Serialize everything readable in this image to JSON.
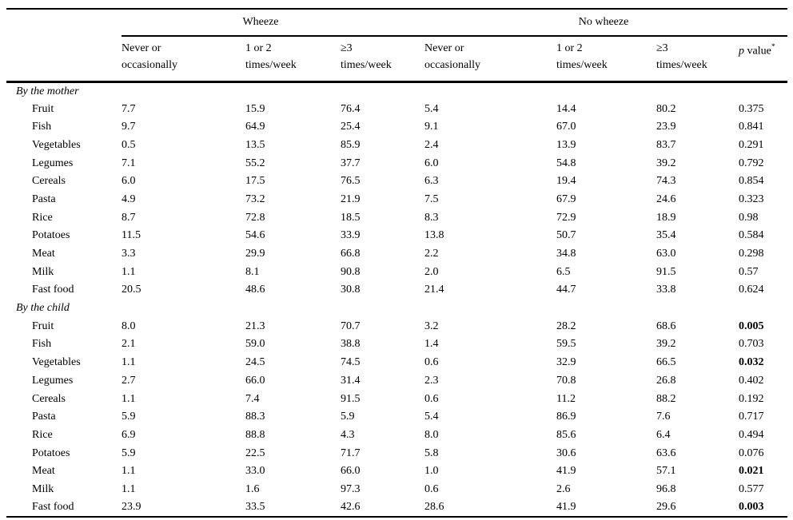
{
  "page": {
    "background": "#ffffff",
    "text_color": "#000000"
  },
  "table": {
    "spanners": {
      "wheeze": "Wheeze",
      "no_wheeze": "No wheeze"
    },
    "column_headers": [
      {
        "line1": "Never or",
        "line2": "occasionally"
      },
      {
        "line1": "1 or 2",
        "line2": "times/week"
      },
      {
        "line1": "≥3",
        "line2": "times/week"
      },
      {
        "line1": "Never or",
        "line2": "occasionally"
      },
      {
        "line1": "1 or 2",
        "line2": "times/week"
      },
      {
        "line1": "≥3",
        "line2": "times/week"
      }
    ],
    "p_value_header": {
      "italic_part": "p",
      "text_part": " value",
      "superscript": "*"
    },
    "sections": [
      {
        "label": "By the mother",
        "rows": [
          {
            "label": "Fruit",
            "values": [
              "7.7",
              "15.9",
              "76.4",
              "5.4",
              "14.4",
              "80.2"
            ],
            "p_value": "0.375",
            "p_bold": false
          },
          {
            "label": "Fish",
            "values": [
              "9.7",
              "64.9",
              "25.4",
              "9.1",
              "67.0",
              "23.9"
            ],
            "p_value": "0.841",
            "p_bold": false
          },
          {
            "label": "Vegetables",
            "values": [
              "0.5",
              "13.5",
              "85.9",
              "2.4",
              "13.9",
              "83.7"
            ],
            "p_value": "0.291",
            "p_bold": false
          },
          {
            "label": "Legumes",
            "values": [
              "7.1",
              "55.2",
              "37.7",
              "6.0",
              "54.8",
              "39.2"
            ],
            "p_value": "0.792",
            "p_bold": false
          },
          {
            "label": "Cereals",
            "values": [
              "6.0",
              "17.5",
              "76.5",
              "6.3",
              "19.4",
              "74.3"
            ],
            "p_value": "0.854",
            "p_bold": false
          },
          {
            "label": "Pasta",
            "values": [
              "4.9",
              "73.2",
              "21.9",
              "7.5",
              "67.9",
              "24.6"
            ],
            "p_value": "0.323",
            "p_bold": false
          },
          {
            "label": "Rice",
            "values": [
              "8.7",
              "72.8",
              "18.5",
              "8.3",
              "72.9",
              "18.9"
            ],
            "p_value": "0.98",
            "p_bold": false
          },
          {
            "label": "Potatoes",
            "values": [
              "11.5",
              "54.6",
              "33.9",
              "13.8",
              "50.7",
              "35.4"
            ],
            "p_value": "0.584",
            "p_bold": false
          },
          {
            "label": "Meat",
            "values": [
              "3.3",
              "29.9",
              "66.8",
              "2.2",
              "34.8",
              "63.0"
            ],
            "p_value": "0.298",
            "p_bold": false
          },
          {
            "label": "Milk",
            "values": [
              "1.1",
              "8.1",
              "90.8",
              "2.0",
              "6.5",
              "91.5"
            ],
            "p_value": "0.57",
            "p_bold": false
          },
          {
            "label": "Fast food",
            "values": [
              "20.5",
              "48.6",
              "30.8",
              "21.4",
              "44.7",
              "33.8"
            ],
            "p_value": "0.624",
            "p_bold": false
          }
        ]
      },
      {
        "label": "By the child",
        "rows": [
          {
            "label": "Fruit",
            "values": [
              "8.0",
              "21.3",
              "70.7",
              "3.2",
              "28.2",
              "68.6"
            ],
            "p_value": "0.005",
            "p_bold": true
          },
          {
            "label": "Fish",
            "values": [
              "2.1",
              "59.0",
              "38.8",
              "1.4",
              "59.5",
              "39.2"
            ],
            "p_value": "0.703",
            "p_bold": false
          },
          {
            "label": "Vegetables",
            "values": [
              "1.1",
              "24.5",
              "74.5",
              "0.6",
              "32.9",
              "66.5"
            ],
            "p_value": "0.032",
            "p_bold": true
          },
          {
            "label": "Legumes",
            "values": [
              "2.7",
              "66.0",
              "31.4",
              "2.3",
              "70.8",
              "26.8"
            ],
            "p_value": "0.402",
            "p_bold": false
          },
          {
            "label": "Cereals",
            "values": [
              "1.1",
              "7.4",
              "91.5",
              "0.6",
              "11.2",
              "88.2"
            ],
            "p_value": "0.192",
            "p_bold": false
          },
          {
            "label": "Pasta",
            "values": [
              "5.9",
              "88.3",
              "5.9",
              "5.4",
              "86.9",
              "7.6"
            ],
            "p_value": "0.717",
            "p_bold": false
          },
          {
            "label": "Rice",
            "values": [
              "6.9",
              "88.8",
              "4.3",
              "8.0",
              "85.6",
              "6.4"
            ],
            "p_value": "0.494",
            "p_bold": false
          },
          {
            "label": "Potatoes",
            "values": [
              "5.9",
              "22.5",
              "71.7",
              "5.8",
              "30.6",
              "63.6"
            ],
            "p_value": "0.076",
            "p_bold": false
          },
          {
            "label": "Meat",
            "values": [
              "1.1",
              "33.0",
              "66.0",
              "1.0",
              "41.9",
              "57.1"
            ],
            "p_value": "0.021",
            "p_bold": true
          },
          {
            "label": "Milk",
            "values": [
              "1.1",
              "1.6",
              "97.3",
              "0.6",
              "2.6",
              "96.8"
            ],
            "p_value": "0.577",
            "p_bold": false
          },
          {
            "label": "Fast food",
            "values": [
              "23.9",
              "33.5",
              "42.6",
              "28.6",
              "41.9",
              "29.6"
            ],
            "p_value": "0.003",
            "p_bold": true
          }
        ]
      }
    ]
  }
}
